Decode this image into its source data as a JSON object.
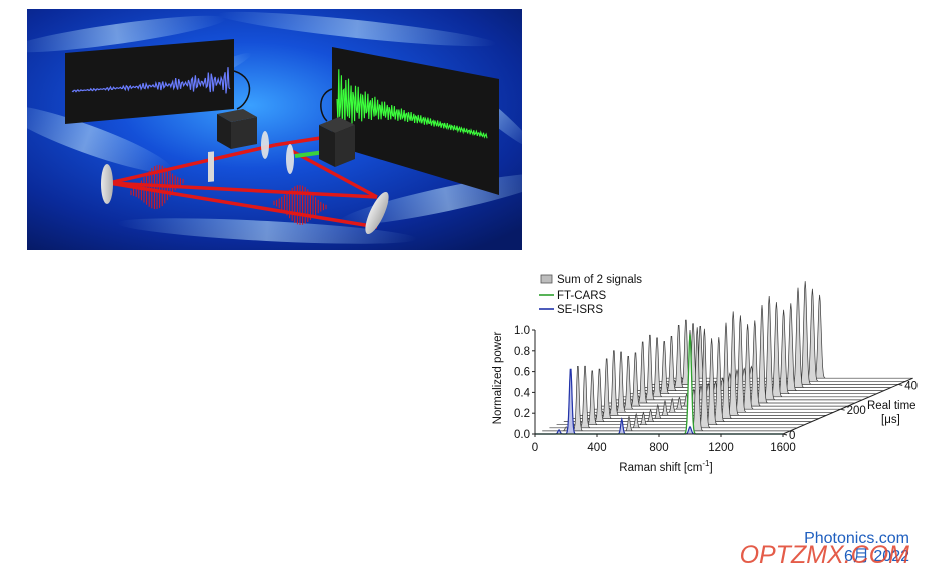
{
  "credit": {
    "source": "Photonics.com",
    "date": "6月 2022"
  },
  "watermark": "OPTZMX.COM",
  "colors": {
    "ft_cars": "#2ea02e",
    "se_isrs": "#2233aa",
    "sum": "#9a9a9a",
    "beam": "#e01818",
    "screen_left_trace": "#6a7cff",
    "screen_right_trace": "#3cff3c"
  },
  "chart_data": {
    "type": "area",
    "title": "",
    "legend": {
      "placement": "top-left",
      "entries": [
        "Sum of 2 signals",
        "FT-CARS",
        "SE-ISRS"
      ]
    },
    "xlabel": "Raman shift [cm",
    "xlabel_sup": "-1",
    "xlabel_close": "]",
    "ylabel": "Normalized power",
    "zlabel_line1": "Real time",
    "zlabel_line2": "[μs]",
    "xlim": [
      0,
      1600
    ],
    "ylim": [
      0,
      1.0
    ],
    "zlim": [
      0,
      400
    ],
    "x_ticks": [
      "0",
      "400",
      "800",
      "1200",
      "1600"
    ],
    "y_ticks": [
      "0.0",
      "0.2",
      "0.4",
      "0.6",
      "0.8",
      "1.0"
    ],
    "z_ticks": [
      "0",
      "200",
      "400"
    ],
    "grid": false,
    "real_time_frames_us": [
      0,
      25,
      50,
      75,
      100,
      125,
      150,
      175,
      200,
      225,
      250,
      275,
      300,
      325,
      350,
      375,
      400,
      425,
      450
    ],
    "series": [
      {
        "name": "FT-CARS",
        "peaks": [
          {
            "x": 1000,
            "y": 0.96,
            "width": 14
          }
        ]
      },
      {
        "name": "SE-ISRS",
        "peaks": [
          {
            "x": 155,
            "y": 0.04,
            "width": 10
          },
          {
            "x": 230,
            "y": 0.64,
            "width": 12
          },
          {
            "x": 560,
            "y": 0.14,
            "width": 10
          },
          {
            "x": 1000,
            "y": 0.07,
            "width": 12
          }
        ]
      },
      {
        "name": "Sum of 2 signals",
        "peaks": [
          {
            "x": 155,
            "y": 0.04,
            "width": 10
          },
          {
            "x": 230,
            "y": 0.64,
            "width": 12
          },
          {
            "x": 560,
            "y": 0.14,
            "width": 10
          },
          {
            "x": 1000,
            "y": 1.0,
            "width": 14
          }
        ]
      }
    ]
  }
}
